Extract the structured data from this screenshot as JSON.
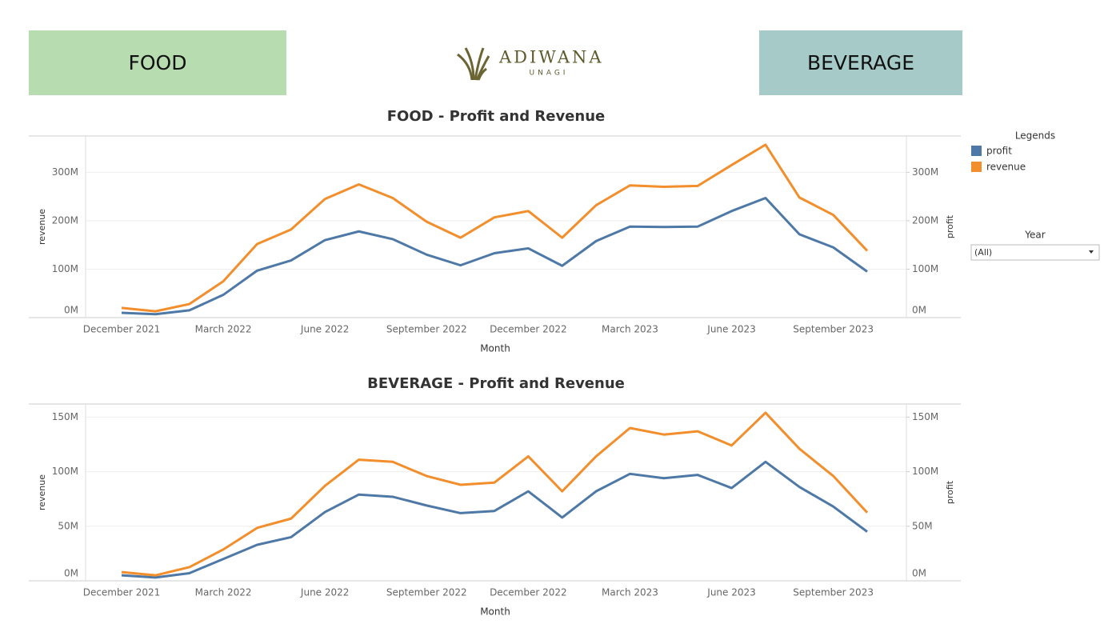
{
  "buttons": [
    "FOOD",
    "BEVERAGE"
  ],
  "logo": {
    "name": "ADIWANA",
    "sub": "UNAGI"
  },
  "legend_title": "Legends",
  "filter": {
    "label": "Year",
    "value": "(All)"
  },
  "chart_data": [
    {
      "type": "line",
      "title": "FOOD - Profit and Revenue",
      "x_label": "Month",
      "y_label": "revenue",
      "y2_label": "profit",
      "categories": [
        "December 2021",
        null,
        null,
        "March 2022",
        null,
        null,
        "June 2022",
        null,
        null,
        "September 2022",
        null,
        null,
        "December 2022",
        null,
        null,
        "March 2023",
        null,
        null,
        "June 2023",
        null,
        null,
        "September 2023",
        null
      ],
      "series": [
        {
          "name": "profit",
          "color": "#4e79a7",
          "axis": "y2",
          "values": [
            10000000,
            7000000,
            15000000,
            47000000,
            97000000,
            118000000,
            160000000,
            178000000,
            162000000,
            130000000,
            108000000,
            133000000,
            143000000,
            107000000,
            158000000,
            188000000,
            187000000,
            188000000,
            220000000,
            247000000,
            172000000,
            145000000,
            95000000
          ]
        },
        {
          "name": "revenue",
          "color": "#f28e2b",
          "values": [
            20000000,
            13000000,
            28000000,
            75000000,
            152000000,
            182000000,
            245000000,
            275000000,
            247000000,
            198000000,
            165000000,
            207000000,
            220000000,
            165000000,
            232000000,
            273000000,
            270000000,
            272000000,
            315000000,
            357000000,
            248000000,
            212000000,
            138000000
          ]
        }
      ],
      "ylim": [
        0,
        375000000
      ],
      "yticks": [
        {
          "value": 0,
          "label": "0M"
        },
        {
          "value": 100000000,
          "label": "100M"
        },
        {
          "value": 200000000,
          "label": "200M"
        },
        {
          "value": 300000000,
          "label": "300M"
        }
      ],
      "y2lim": [
        0,
        375000000
      ],
      "y2ticks": [
        {
          "value": 0,
          "label": "0M"
        },
        {
          "value": 100000000,
          "label": "100M"
        },
        {
          "value": 200000000,
          "label": "200M"
        },
        {
          "value": 300000000,
          "label": "300M"
        }
      ],
      "grid": true
    },
    {
      "type": "line",
      "title": "BEVERAGE - Profit and Revenue",
      "x_label": "Month",
      "y_label": "revenue",
      "y2_label": "profit",
      "categories": [
        "December 2021",
        null,
        null,
        "March 2022",
        null,
        null,
        "June 2022",
        null,
        null,
        "September 2022",
        null,
        null,
        "December 2022",
        null,
        null,
        "March 2023",
        null,
        null,
        "June 2023",
        null,
        null,
        "September 2023",
        null
      ],
      "series": [
        {
          "name": "profit",
          "color": "#4e79a7",
          "axis": "y2",
          "values": [
            5000000,
            3000000,
            7000000,
            20000000,
            33000000,
            40000000,
            63000000,
            79000000,
            77000000,
            69000000,
            62000000,
            64000000,
            82000000,
            58000000,
            82000000,
            98000000,
            94000000,
            97000000,
            85000000,
            109000000,
            86000000,
            68000000,
            45000000
          ]
        },
        {
          "name": "revenue",
          "color": "#f28e2b",
          "values": [
            8000000,
            5000000,
            12500000,
            28700000,
            48500000,
            57000000,
            87000000,
            111000000,
            109000000,
            96000000,
            88000000,
            90000000,
            114000000,
            82000000,
            114000000,
            140000000,
            134000000,
            137000000,
            124000000,
            154000000,
            121000000,
            96000000,
            62500000
          ]
        }
      ],
      "ylim": [
        0,
        162000000
      ],
      "yticks": [
        {
          "value": 0,
          "label": "0M"
        },
        {
          "value": 50000000,
          "label": "50M"
        },
        {
          "value": 100000000,
          "label": "100M"
        },
        {
          "value": 150000000,
          "label": "150M"
        }
      ],
      "y2lim": [
        0,
        162000000
      ],
      "y2ticks": [
        {
          "value": 0,
          "label": "0M"
        },
        {
          "value": 50000000,
          "label": "50M"
        },
        {
          "value": 100000000,
          "label": "100M"
        },
        {
          "value": 150000000,
          "label": "150M"
        }
      ],
      "grid": true
    }
  ]
}
